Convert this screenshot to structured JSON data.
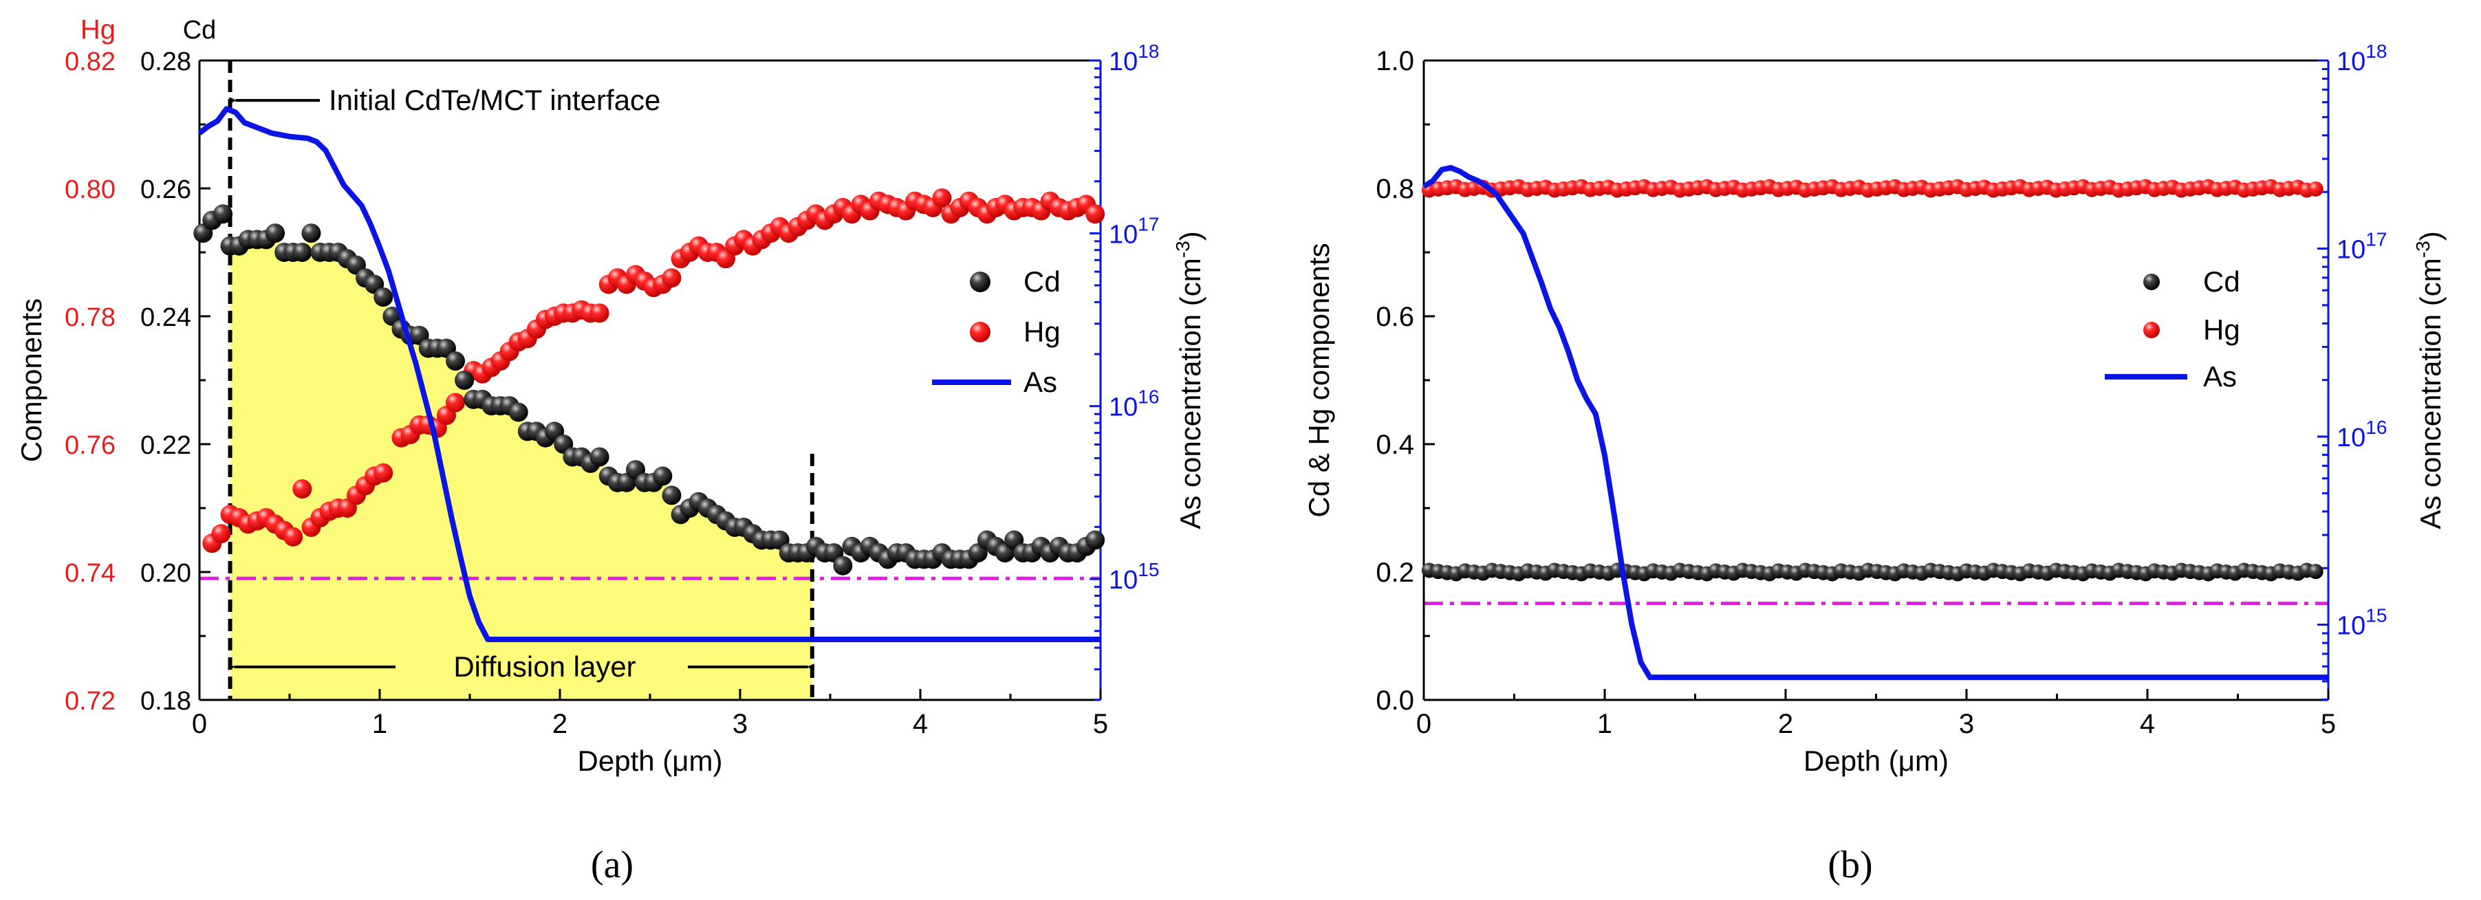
{
  "colors": {
    "cd": "#1a1a1a",
    "hg": "#ff2020",
    "as": "#0a14e6",
    "limit": "#e61ae6",
    "fill": "#fcfc7a",
    "hgAxis": "#e61e1e",
    "asAxis": "#0a14e6"
  },
  "chart_data": [
    {
      "type": "scatter",
      "caption": "(a)",
      "xlabel": "Depth (μm)",
      "ylabel_left": "Components",
      "ylabel_right": "As concentration (cm",
      "ylabel_right_sup": "-3",
      "ylabel_right_end": ")",
      "cd_axis_title": "Cd",
      "hg_axis_title": "Hg",
      "xlim": [
        0,
        5
      ],
      "x_ticks": [
        "0",
        "1",
        "2",
        "3",
        "4",
        "5"
      ],
      "cd_ylim": [
        0.18,
        0.28
      ],
      "cd_ticks": [
        "0.18",
        "0.20",
        "0.22",
        "0.24",
        "0.26",
        "0.28"
      ],
      "hg_ylim": [
        0.72,
        0.82
      ],
      "hg_ticks": [
        "0.72",
        "0.74",
        "0.76",
        "0.78",
        "0.80",
        "0.82"
      ],
      "as_log_range": [
        14.3,
        18
      ],
      "as_ticks": [
        {
          "base": "10",
          "exp": "15",
          "value": 15
        },
        {
          "base": "10",
          "exp": "16",
          "value": 16
        },
        {
          "base": "10",
          "exp": "17",
          "value": 17
        },
        {
          "base": "10",
          "exp": "18",
          "value": 18
        }
      ],
      "legend": [
        "Cd",
        "Hg",
        "As"
      ],
      "legend_position": "right",
      "annotations": {
        "interface": "Initial CdTe/MCT interface",
        "diffusion": "Diffusion layer"
      },
      "interface_depth": 0.17,
      "diffusion_end_depth": 3.4,
      "limit_line_cd_value": 0.199,
      "cd_points": [
        [
          0.02,
          0.253
        ],
        [
          0.07,
          0.255
        ],
        [
          0.13,
          0.256
        ],
        [
          0.17,
          0.251
        ],
        [
          0.22,
          0.251
        ],
        [
          0.27,
          0.252
        ],
        [
          0.32,
          0.252
        ],
        [
          0.37,
          0.252
        ],
        [
          0.42,
          0.253
        ],
        [
          0.47,
          0.25
        ],
        [
          0.52,
          0.25
        ],
        [
          0.57,
          0.25
        ],
        [
          0.62,
          0.253
        ],
        [
          0.67,
          0.25
        ],
        [
          0.72,
          0.25
        ],
        [
          0.77,
          0.25
        ],
        [
          0.82,
          0.249
        ],
        [
          0.87,
          0.248
        ],
        [
          0.92,
          0.246
        ],
        [
          0.97,
          0.245
        ],
        [
          1.02,
          0.243
        ],
        [
          1.07,
          0.24
        ],
        [
          1.12,
          0.238
        ],
        [
          1.17,
          0.237
        ],
        [
          1.22,
          0.237
        ],
        [
          1.27,
          0.235
        ],
        [
          1.32,
          0.235
        ],
        [
          1.37,
          0.235
        ],
        [
          1.42,
          0.233
        ],
        [
          1.47,
          0.23
        ],
        [
          1.52,
          0.227
        ],
        [
          1.57,
          0.227
        ],
        [
          1.62,
          0.226
        ],
        [
          1.67,
          0.226
        ],
        [
          1.72,
          0.226
        ],
        [
          1.77,
          0.225
        ],
        [
          1.82,
          0.222
        ],
        [
          1.87,
          0.222
        ],
        [
          1.92,
          0.221
        ],
        [
          1.97,
          0.222
        ],
        [
          2.02,
          0.22
        ],
        [
          2.07,
          0.218
        ],
        [
          2.12,
          0.218
        ],
        [
          2.17,
          0.217
        ],
        [
          2.22,
          0.218
        ],
        [
          2.27,
          0.215
        ],
        [
          2.32,
          0.214
        ],
        [
          2.37,
          0.214
        ],
        [
          2.42,
          0.216
        ],
        [
          2.47,
          0.214
        ],
        [
          2.52,
          0.214
        ],
        [
          2.57,
          0.215
        ],
        [
          2.62,
          0.212
        ],
        [
          2.67,
          0.209
        ],
        [
          2.72,
          0.21
        ],
        [
          2.77,
          0.211
        ],
        [
          2.82,
          0.21
        ],
        [
          2.87,
          0.209
        ],
        [
          2.92,
          0.208
        ],
        [
          2.97,
          0.207
        ],
        [
          3.02,
          0.207
        ],
        [
          3.07,
          0.206
        ],
        [
          3.12,
          0.205
        ],
        [
          3.17,
          0.205
        ],
        [
          3.22,
          0.205
        ],
        [
          3.27,
          0.203
        ],
        [
          3.32,
          0.203
        ],
        [
          3.37,
          0.203
        ],
        [
          3.42,
          0.204
        ],
        [
          3.47,
          0.203
        ],
        [
          3.52,
          0.203
        ],
        [
          3.57,
          0.201
        ],
        [
          3.62,
          0.204
        ],
        [
          3.67,
          0.203
        ],
        [
          3.72,
          0.204
        ],
        [
          3.77,
          0.203
        ],
        [
          3.82,
          0.202
        ],
        [
          3.87,
          0.203
        ],
        [
          3.92,
          0.203
        ],
        [
          3.97,
          0.202
        ],
        [
          4.02,
          0.202
        ],
        [
          4.07,
          0.202
        ],
        [
          4.12,
          0.203
        ],
        [
          4.17,
          0.202
        ],
        [
          4.22,
          0.202
        ],
        [
          4.27,
          0.202
        ],
        [
          4.32,
          0.203
        ],
        [
          4.37,
          0.205
        ],
        [
          4.42,
          0.204
        ],
        [
          4.47,
          0.203
        ],
        [
          4.52,
          0.205
        ],
        [
          4.57,
          0.203
        ],
        [
          4.62,
          0.203
        ],
        [
          4.67,
          0.204
        ],
        [
          4.72,
          0.203
        ],
        [
          4.77,
          0.204
        ],
        [
          4.82,
          0.203
        ],
        [
          4.87,
          0.203
        ],
        [
          4.92,
          0.204
        ],
        [
          4.97,
          0.205
        ]
      ],
      "hg_points": [
        [
          0.07,
          0.7445
        ],
        [
          0.12,
          0.746
        ],
        [
          0.17,
          0.749
        ],
        [
          0.22,
          0.7485
        ],
        [
          0.27,
          0.7475
        ],
        [
          0.32,
          0.748
        ],
        [
          0.37,
          0.7485
        ],
        [
          0.42,
          0.7475
        ],
        [
          0.47,
          0.7465
        ],
        [
          0.52,
          0.7455
        ],
        [
          0.57,
          0.753
        ],
        [
          0.62,
          0.747
        ],
        [
          0.67,
          0.7485
        ],
        [
          0.72,
          0.7495
        ],
        [
          0.77,
          0.75
        ],
        [
          0.82,
          0.75
        ],
        [
          0.87,
          0.752
        ],
        [
          0.92,
          0.7535
        ],
        [
          0.97,
          0.755
        ],
        [
          1.02,
          0.7555
        ],
        [
          1.12,
          0.761
        ],
        [
          1.17,
          0.7615
        ],
        [
          1.22,
          0.763
        ],
        [
          1.27,
          0.763
        ],
        [
          1.32,
          0.7625
        ],
        [
          1.37,
          0.7645
        ],
        [
          1.42,
          0.7665
        ],
        [
          1.47,
          0.77
        ],
        [
          1.52,
          0.7715
        ],
        [
          1.57,
          0.771
        ],
        [
          1.62,
          0.772
        ],
        [
          1.67,
          0.773
        ],
        [
          1.72,
          0.7745
        ],
        [
          1.77,
          0.776
        ],
        [
          1.82,
          0.7765
        ],
        [
          1.87,
          0.778
        ],
        [
          1.92,
          0.7795
        ],
        [
          1.97,
          0.78
        ],
        [
          2.02,
          0.7805
        ],
        [
          2.07,
          0.7805
        ],
        [
          2.12,
          0.781
        ],
        [
          2.17,
          0.7805
        ],
        [
          2.22,
          0.7805
        ],
        [
          2.27,
          0.785
        ],
        [
          2.32,
          0.786
        ],
        [
          2.37,
          0.785
        ],
        [
          2.42,
          0.7865
        ],
        [
          2.47,
          0.7855
        ],
        [
          2.52,
          0.7845
        ],
        [
          2.57,
          0.785
        ],
        [
          2.62,
          0.786
        ],
        [
          2.67,
          0.789
        ],
        [
          2.72,
          0.79
        ],
        [
          2.77,
          0.791
        ],
        [
          2.82,
          0.79
        ],
        [
          2.87,
          0.79
        ],
        [
          2.92,
          0.789
        ],
        [
          2.97,
          0.791
        ],
        [
          3.02,
          0.792
        ],
        [
          3.07,
          0.791
        ],
        [
          3.12,
          0.792
        ],
        [
          3.17,
          0.793
        ],
        [
          3.22,
          0.794
        ],
        [
          3.27,
          0.793
        ],
        [
          3.32,
          0.794
        ],
        [
          3.37,
          0.795
        ],
        [
          3.42,
          0.796
        ],
        [
          3.47,
          0.795
        ],
        [
          3.52,
          0.796
        ],
        [
          3.57,
          0.797
        ],
        [
          3.62,
          0.796
        ],
        [
          3.67,
          0.7975
        ],
        [
          3.72,
          0.7965
        ],
        [
          3.77,
          0.798
        ],
        [
          3.82,
          0.7975
        ],
        [
          3.87,
          0.797
        ],
        [
          3.92,
          0.7965
        ],
        [
          3.97,
          0.798
        ],
        [
          4.02,
          0.7975
        ],
        [
          4.07,
          0.797
        ],
        [
          4.12,
          0.7985
        ],
        [
          4.17,
          0.796
        ],
        [
          4.22,
          0.797
        ],
        [
          4.27,
          0.798
        ],
        [
          4.32,
          0.797
        ],
        [
          4.37,
          0.796
        ],
        [
          4.42,
          0.797
        ],
        [
          4.47,
          0.7975
        ],
        [
          4.52,
          0.7965
        ],
        [
          4.57,
          0.797
        ],
        [
          4.62,
          0.797
        ],
        [
          4.67,
          0.7965
        ],
        [
          4.72,
          0.798
        ],
        [
          4.77,
          0.797
        ],
        [
          4.82,
          0.7965
        ],
        [
          4.87,
          0.797
        ],
        [
          4.92,
          0.7975
        ],
        [
          4.97,
          0.796
        ]
      ],
      "as_curve": [
        [
          0.0,
          17.58
        ],
        [
          0.05,
          17.62
        ],
        [
          0.1,
          17.65
        ],
        [
          0.15,
          17.72
        ],
        [
          0.2,
          17.7
        ],
        [
          0.25,
          17.64
        ],
        [
          0.3,
          17.62
        ],
        [
          0.35,
          17.6
        ],
        [
          0.4,
          17.58
        ],
        [
          0.5,
          17.56
        ],
        [
          0.6,
          17.55
        ],
        [
          0.65,
          17.53
        ],
        [
          0.7,
          17.48
        ],
        [
          0.75,
          17.38
        ],
        [
          0.8,
          17.28
        ],
        [
          0.85,
          17.22
        ],
        [
          0.9,
          17.16
        ],
        [
          0.95,
          17.05
        ],
        [
          1.0,
          16.92
        ],
        [
          1.05,
          16.78
        ],
        [
          1.1,
          16.6
        ],
        [
          1.15,
          16.42
        ],
        [
          1.2,
          16.25
        ],
        [
          1.25,
          16.05
        ],
        [
          1.3,
          15.85
        ],
        [
          1.35,
          15.6
        ],
        [
          1.4,
          15.35
        ],
        [
          1.45,
          15.12
        ],
        [
          1.5,
          14.9
        ],
        [
          1.55,
          14.75
        ],
        [
          1.6,
          14.65
        ],
        [
          5.0,
          14.65
        ]
      ]
    },
    {
      "type": "scatter",
      "caption": "(b)",
      "xlabel": "Depth (μm)",
      "ylabel_left": "Cd & Hg components",
      "ylabel_right": "As concentration (cm",
      "ylabel_right_sup": "-3",
      "ylabel_right_end": ")",
      "xlim": [
        0,
        5
      ],
      "x_ticks": [
        "0",
        "1",
        "2",
        "3",
        "4",
        "5"
      ],
      "ylim": [
        0,
        1
      ],
      "y_ticks": [
        "0.0",
        "0.2",
        "0.4",
        "0.6",
        "0.8",
        "1.0"
      ],
      "as_log_range": [
        14.6,
        18
      ],
      "as_ticks": [
        {
          "base": "10",
          "exp": "15",
          "value": 15
        },
        {
          "base": "10",
          "exp": "16",
          "value": 16
        },
        {
          "base": "10",
          "exp": "17",
          "value": 17
        },
        {
          "base": "10",
          "exp": "18",
          "value": 18
        }
      ],
      "legend": [
        "Cd",
        "Hg",
        "As"
      ],
      "legend_position": "right",
      "cd_level": 0.2,
      "hg_level": 0.8,
      "limit_line_value": 0.151,
      "as_curve": [
        [
          0.0,
          17.33
        ],
        [
          0.05,
          17.36
        ],
        [
          0.1,
          17.42
        ],
        [
          0.15,
          17.43
        ],
        [
          0.2,
          17.41
        ],
        [
          0.25,
          17.38
        ],
        [
          0.3,
          17.36
        ],
        [
          0.35,
          17.33
        ],
        [
          0.4,
          17.29
        ],
        [
          0.45,
          17.22
        ],
        [
          0.5,
          17.15
        ],
        [
          0.55,
          17.08
        ],
        [
          0.6,
          16.95
        ],
        [
          0.65,
          16.82
        ],
        [
          0.7,
          16.68
        ],
        [
          0.75,
          16.58
        ],
        [
          0.8,
          16.45
        ],
        [
          0.85,
          16.3
        ],
        [
          0.9,
          16.2
        ],
        [
          0.95,
          16.12
        ],
        [
          1.0,
          15.9
        ],
        [
          1.05,
          15.6
        ],
        [
          1.1,
          15.28
        ],
        [
          1.15,
          15.0
        ],
        [
          1.2,
          14.8
        ],
        [
          1.25,
          14.72
        ],
        [
          5.0,
          14.72
        ]
      ]
    }
  ]
}
